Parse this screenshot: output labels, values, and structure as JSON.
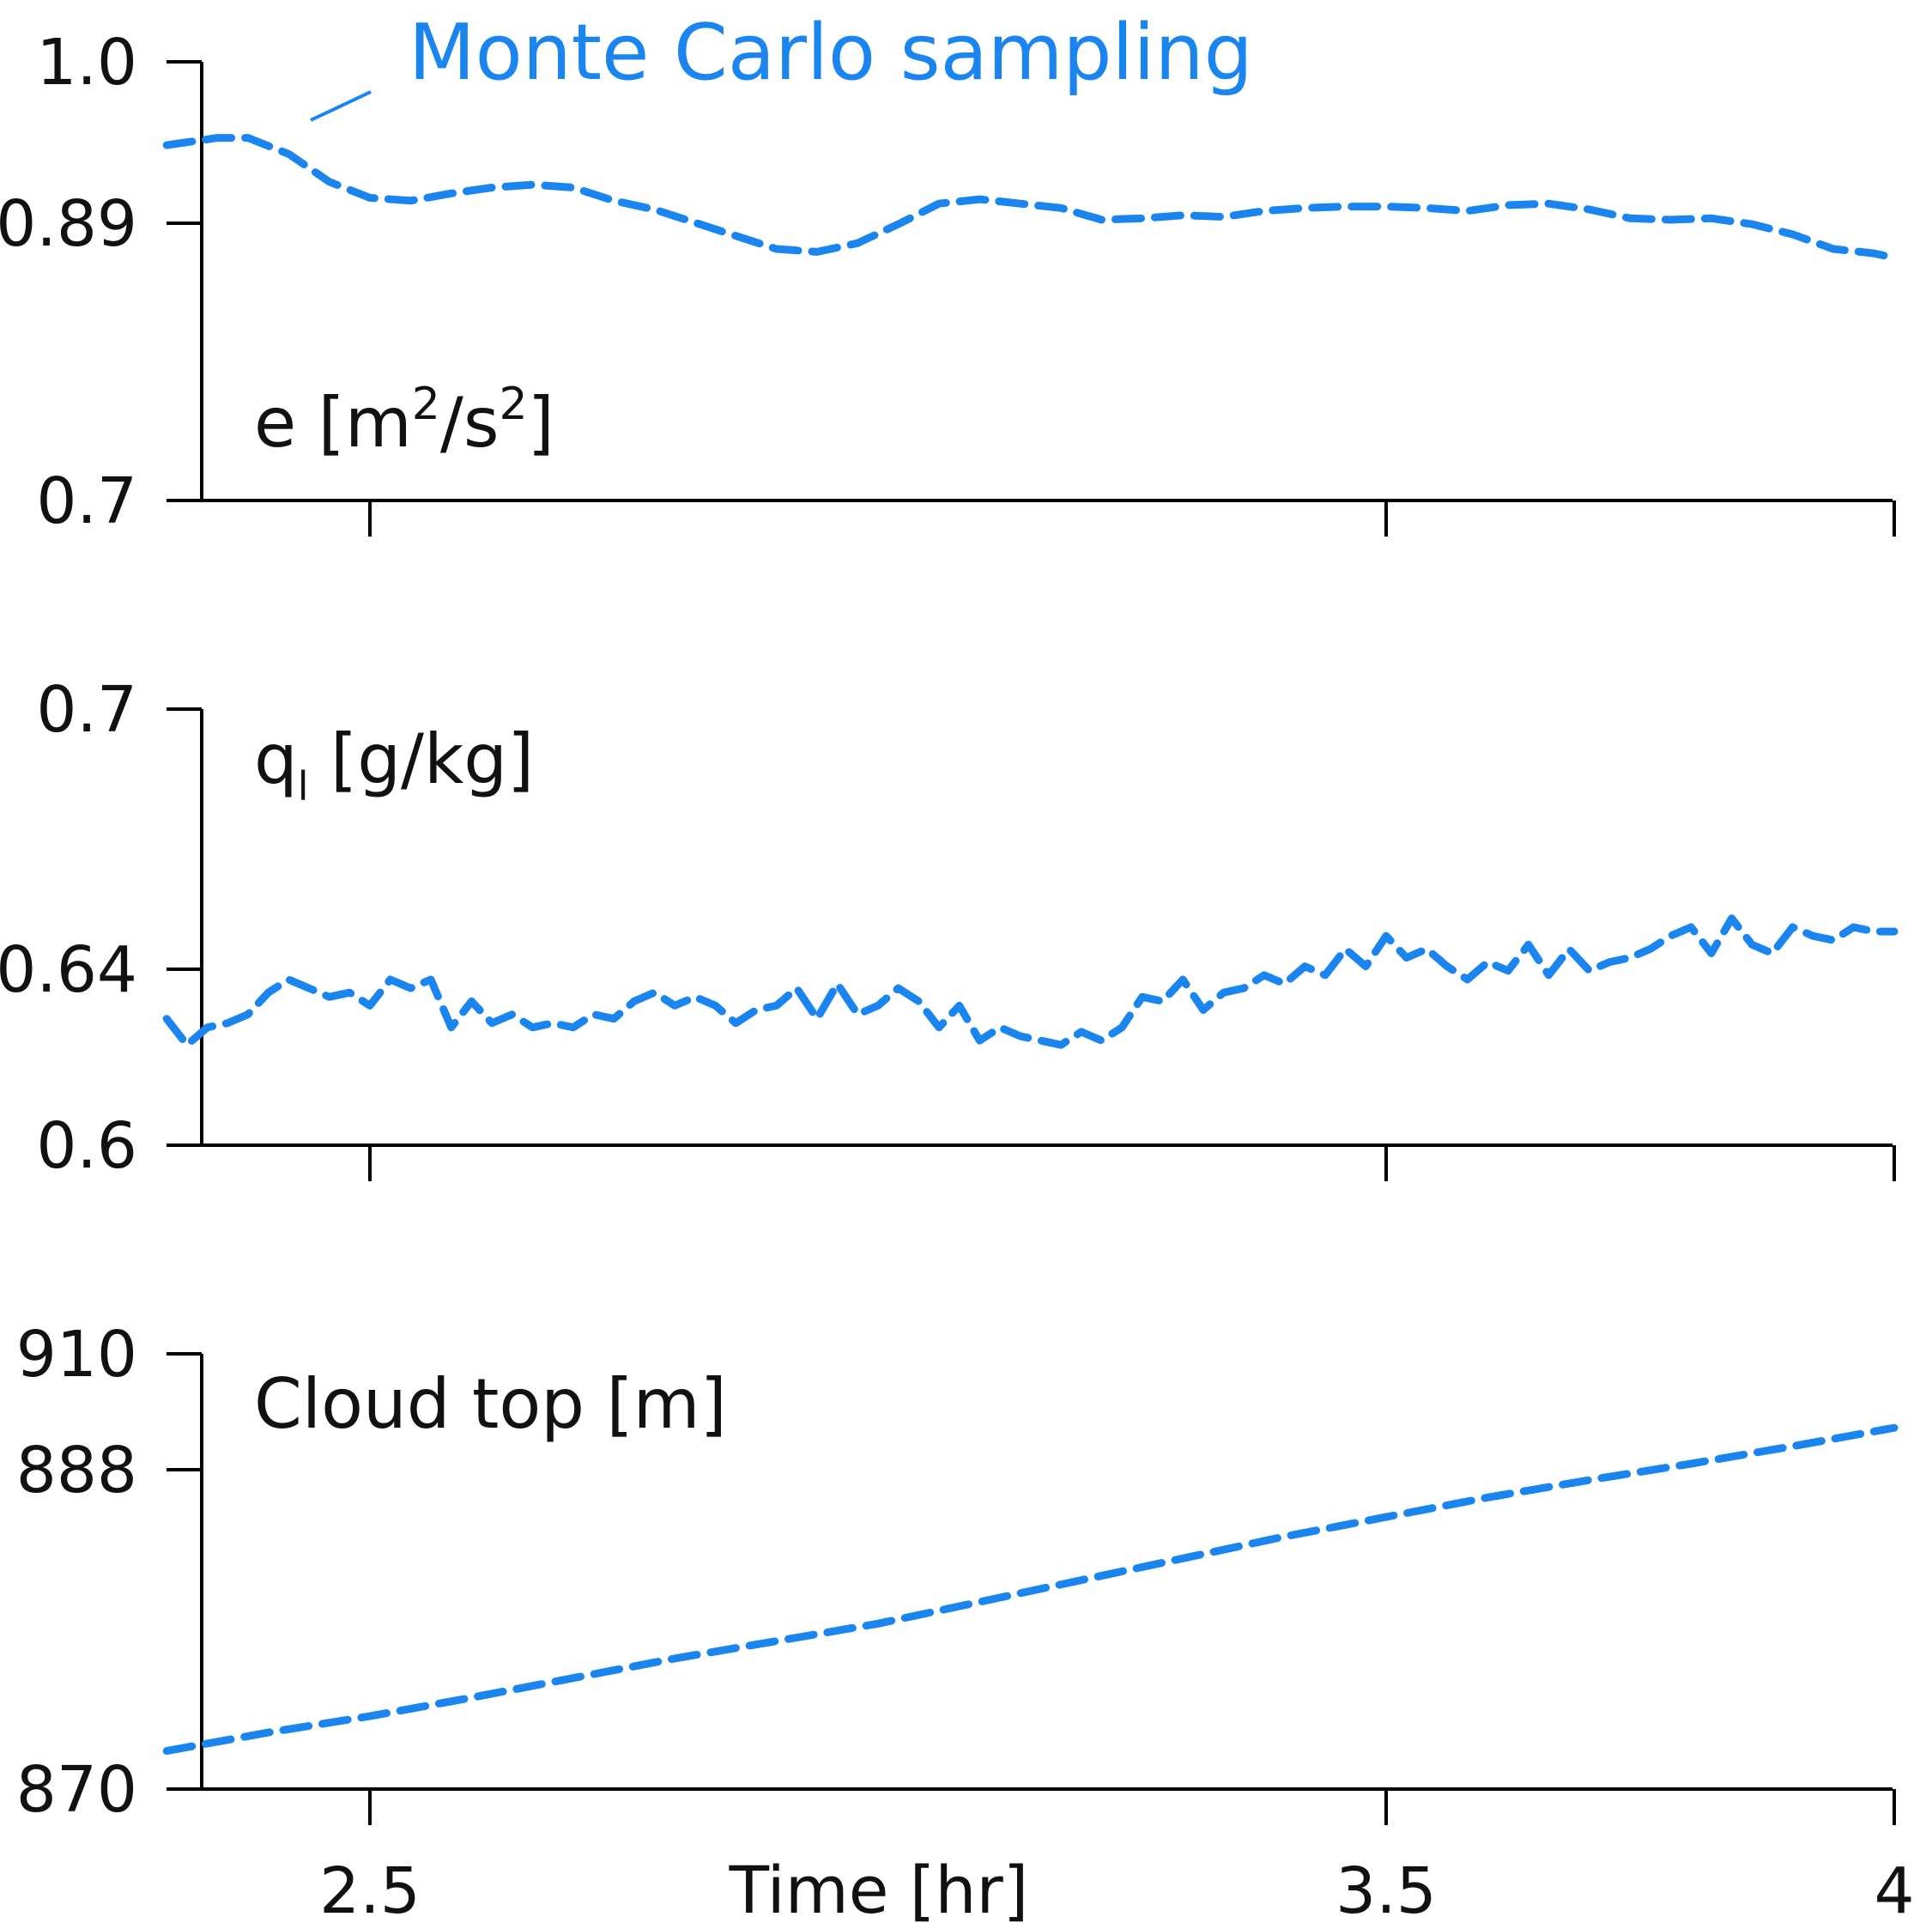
{
  "colors": {
    "series": "#1a84ef",
    "axis": "#000000",
    "text": "#111111"
  },
  "legend": {
    "label": "Monte Carlo sampling"
  },
  "x_axis": {
    "label": "Time [hr]",
    "ticks": [
      "2.5",
      "3.5",
      "4"
    ]
  },
  "chart_data": [
    {
      "type": "line",
      "label": "e [m²/s²]",
      "label_main": "e [m",
      "label_sup1": "2",
      "label_mid": "/s",
      "label_sup2": "2",
      "label_end": "]",
      "xlim": [
        2.3,
        4.0
      ],
      "ylim": [
        0.7,
        1.0
      ],
      "y_ticks": [
        "1.0",
        "0.89",
        "0.7"
      ],
      "y_tick_values": [
        1.0,
        0.89,
        0.7
      ],
      "x_ticks": [
        2.5,
        3.5,
        4.0
      ],
      "series": [
        {
          "name": "Monte Carlo sampling",
          "x": [
            2.3,
            2.35,
            2.38,
            2.42,
            2.46,
            2.5,
            2.54,
            2.58,
            2.62,
            2.66,
            2.7,
            2.74,
            2.78,
            2.82,
            2.86,
            2.9,
            2.94,
            2.98,
            3.02,
            3.06,
            3.1,
            3.14,
            3.18,
            3.22,
            3.26,
            3.3,
            3.34,
            3.38,
            3.42,
            3.46,
            3.5,
            3.54,
            3.58,
            3.62,
            3.66,
            3.7,
            3.74,
            3.78,
            3.82,
            3.86,
            3.9,
            3.94,
            3.98,
            4.0
          ],
          "y": [
            0.943,
            0.948,
            0.948,
            0.937,
            0.918,
            0.907,
            0.905,
            0.91,
            0.914,
            0.916,
            0.914,
            0.905,
            0.899,
            0.89,
            0.881,
            0.872,
            0.87,
            0.876,
            0.889,
            0.903,
            0.906,
            0.903,
            0.9,
            0.892,
            0.893,
            0.895,
            0.894,
            0.898,
            0.9,
            0.901,
            0.901,
            0.9,
            0.898,
            0.902,
            0.903,
            0.899,
            0.893,
            0.892,
            0.893,
            0.889,
            0.882,
            0.872,
            0.869,
            0.866
          ]
        }
      ]
    },
    {
      "type": "line",
      "label_main": "q",
      "label_sub": "l",
      "label_end": " [g/kg]",
      "xlim": [
        2.3,
        4.0
      ],
      "ylim": [
        0.6,
        0.7
      ],
      "y_ticks": [
        "0.7",
        "0.64",
        "0.6"
      ],
      "y_tick_values": [
        0.7,
        0.64,
        0.6
      ],
      "x_ticks": [
        2.5,
        3.5,
        4.0
      ],
      "series": [
        {
          "name": "Monte Carlo sampling",
          "x": [
            2.3,
            2.32,
            2.34,
            2.36,
            2.38,
            2.4,
            2.42,
            2.44,
            2.46,
            2.48,
            2.5,
            2.52,
            2.54,
            2.56,
            2.58,
            2.6,
            2.62,
            2.64,
            2.66,
            2.68,
            2.7,
            2.72,
            2.74,
            2.76,
            2.78,
            2.8,
            2.82,
            2.84,
            2.86,
            2.88,
            2.9,
            2.92,
            2.94,
            2.96,
            2.98,
            3.0,
            3.02,
            3.04,
            3.06,
            3.08,
            3.1,
            3.12,
            3.14,
            3.16,
            3.18,
            3.2,
            3.22,
            3.24,
            3.26,
            3.28,
            3.3,
            3.32,
            3.34,
            3.36,
            3.38,
            3.4,
            3.42,
            3.44,
            3.46,
            3.48,
            3.5,
            3.52,
            3.54,
            3.56,
            3.58,
            3.6,
            3.62,
            3.64,
            3.66,
            3.68,
            3.7,
            3.72,
            3.74,
            3.76,
            3.78,
            3.8,
            3.82,
            3.84,
            3.86,
            3.88,
            3.9,
            3.92,
            3.94,
            3.96,
            3.98,
            4.0
          ],
          "y": [
            0.629,
            0.623,
            0.627,
            0.628,
            0.63,
            0.635,
            0.638,
            0.636,
            0.634,
            0.635,
            0.632,
            0.638,
            0.636,
            0.638,
            0.627,
            0.633,
            0.628,
            0.63,
            0.627,
            0.628,
            0.627,
            0.63,
            0.629,
            0.633,
            0.635,
            0.632,
            0.634,
            0.632,
            0.628,
            0.631,
            0.632,
            0.636,
            0.629,
            0.637,
            0.63,
            0.632,
            0.636,
            0.633,
            0.627,
            0.632,
            0.624,
            0.627,
            0.625,
            0.624,
            0.623,
            0.626,
            0.624,
            0.627,
            0.634,
            0.633,
            0.638,
            0.631,
            0.635,
            0.636,
            0.639,
            0.637,
            0.641,
            0.639,
            0.645,
            0.641,
            0.648,
            0.643,
            0.645,
            0.641,
            0.638,
            0.642,
            0.64,
            0.646,
            0.639,
            0.645,
            0.64,
            0.642,
            0.643,
            0.645,
            0.648,
            0.65,
            0.644,
            0.652,
            0.646,
            0.644,
            0.65,
            0.648,
            0.647,
            0.65,
            0.649,
            0.649
          ]
        }
      ]
    },
    {
      "type": "line",
      "label": "Cloud top [m]",
      "xlim": [
        2.3,
        4.0
      ],
      "ylim": [
        870,
        910
      ],
      "y_ticks": [
        "910",
        "888",
        "870"
      ],
      "y_tick_values": [
        910,
        888,
        870
      ],
      "x_ticks": [
        2.5,
        3.5,
        4.0
      ],
      "series": [
        {
          "name": "Monte Carlo sampling",
          "x": [
            2.3,
            2.4,
            2.5,
            2.6,
            2.7,
            2.8,
            2.9,
            3.0,
            3.1,
            3.2,
            3.3,
            3.4,
            3.5,
            3.6,
            3.7,
            3.8,
            3.9,
            4.0
          ],
          "y": [
            873.5,
            875.2,
            876.7,
            878.4,
            880.2,
            882.0,
            883.6,
            885.2,
            887.2,
            889.2,
            891.2,
            893.2,
            895.0,
            896.8,
            898.4,
            899.9,
            901.5,
            903.2
          ]
        }
      ]
    }
  ]
}
